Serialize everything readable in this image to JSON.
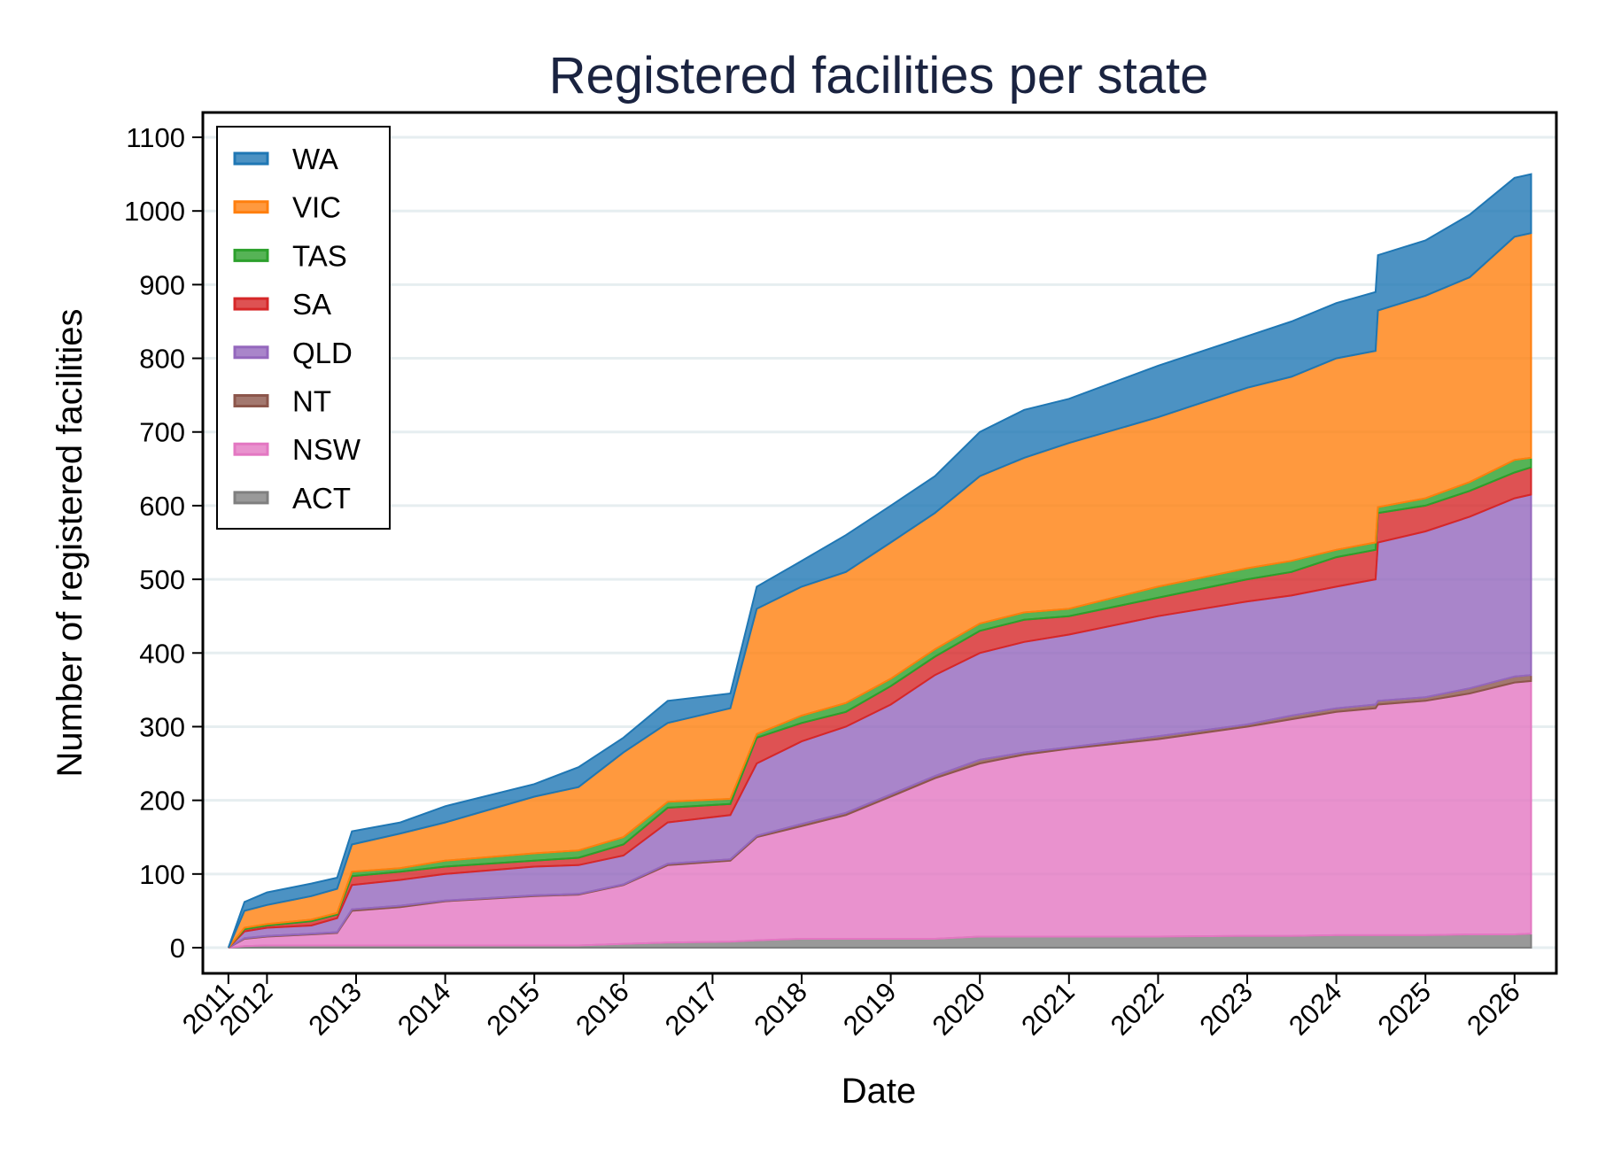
{
  "chart_data": {
    "type": "area",
    "stacked": true,
    "title": "Registered facilities per state",
    "xlabel": "Date",
    "ylabel": "Number of registered facilities",
    "ylim": [
      -35,
      1135
    ],
    "yticks": [
      0,
      100,
      200,
      300,
      400,
      500,
      600,
      700,
      800,
      900,
      1000,
      1100
    ],
    "xticks": [
      {
        "label": "2011",
        "date": "2011-07-27"
      },
      {
        "label": "2012",
        "date": "2012-01-01"
      },
      {
        "label": "2013",
        "date": "2013-01-01"
      },
      {
        "label": "2014",
        "date": "2014-01-01"
      },
      {
        "label": "2015",
        "date": "2015-01-01"
      },
      {
        "label": "2016",
        "date": "2016-01-01"
      },
      {
        "label": "2017",
        "date": "2017-01-01"
      },
      {
        "label": "2018",
        "date": "2018-01-01"
      },
      {
        "label": "2019",
        "date": "2019-01-01"
      },
      {
        "label": "2020",
        "date": "2020-01-01"
      },
      {
        "label": "2021",
        "date": "2021-01-01"
      },
      {
        "label": "2022",
        "date": "2022-01-01"
      },
      {
        "label": "2023",
        "date": "2023-01-01"
      },
      {
        "label": "2024",
        "date": "2024-01-01"
      },
      {
        "label": "2025",
        "date": "2025-01-01"
      },
      {
        "label": "2026",
        "date": "2026-01-01"
      }
    ],
    "grid": true,
    "legend_position": "top-left",
    "x": [
      "2011-07-27",
      "2011-10-01",
      "2012-01-01",
      "2012-07-01",
      "2012-10-15",
      "2012-12-15",
      "2013-07-01",
      "2014-01-01",
      "2015-01-01",
      "2015-07-01",
      "2016-01-01",
      "2016-07-01",
      "2017-03-15",
      "2017-07-01",
      "2018-01-01",
      "2018-07-01",
      "2019-01-01",
      "2019-07-01",
      "2020-01-01",
      "2020-07-01",
      "2021-01-01",
      "2022-01-01",
      "2023-01-01",
      "2023-07-01",
      "2024-01-01",
      "2024-06-10",
      "2024-06-20",
      "2025-01-01",
      "2025-07-01",
      "2026-01-01",
      "2026-03-10"
    ],
    "series": [
      {
        "name": "ACT",
        "color": "#7f7f7f",
        "values": [
          0,
          2,
          3,
          3,
          3,
          3,
          3,
          3,
          3,
          3,
          5,
          7,
          8,
          10,
          12,
          12,
          12,
          12,
          15,
          15,
          15,
          15,
          16,
          16,
          17,
          17,
          17,
          17,
          18,
          18,
          19
        ]
      },
      {
        "name": "NSW",
        "color": "#e377c2",
        "values": [
          0,
          10,
          12,
          15,
          17,
          47,
          52,
          60,
          67,
          69,
          80,
          105,
          110,
          140,
          153,
          168,
          193,
          218,
          235,
          247,
          255,
          268,
          284,
          294,
          303,
          308,
          313,
          318,
          327,
          342,
          343
        ]
      },
      {
        "name": "NT",
        "color": "#8c564b",
        "values": [
          0,
          1,
          1,
          1,
          1,
          2,
          2,
          1,
          1,
          1,
          1,
          2,
          2,
          2,
          3,
          3,
          3,
          3,
          5,
          3,
          2,
          4,
          3,
          5,
          5,
          5,
          5,
          5,
          7,
          8,
          8
        ]
      },
      {
        "name": "QLD",
        "color": "#9467bd",
        "values": [
          0,
          9,
          11,
          11,
          19,
          33,
          35,
          36,
          39,
          39,
          39,
          56,
          60,
          98,
          112,
          117,
          122,
          137,
          145,
          150,
          153,
          163,
          167,
          163,
          165,
          170,
          215,
          225,
          233,
          242,
          245
        ]
      },
      {
        "name": "SA",
        "color": "#d62728",
        "values": [
          0,
          3,
          3,
          6,
          5,
          12,
          11,
          10,
          8,
          10,
          15,
          20,
          15,
          35,
          25,
          20,
          25,
          25,
          30,
          30,
          25,
          25,
          30,
          32,
          40,
          40,
          40,
          35,
          35,
          35,
          37
        ]
      },
      {
        "name": "TAS",
        "color": "#2ca02c",
        "values": [
          0,
          2,
          2,
          2,
          2,
          6,
          5,
          8,
          10,
          10,
          10,
          8,
          7,
          5,
          10,
          12,
          10,
          10,
          10,
          10,
          10,
          15,
          15,
          15,
          10,
          10,
          8,
          10,
          12,
          17,
          13
        ]
      },
      {
        "name": "VIC",
        "color": "#ff7f0e",
        "values": [
          0,
          23,
          26,
          32,
          33,
          37,
          47,
          52,
          77,
          86,
          115,
          107,
          123,
          170,
          175,
          178,
          185,
          185,
          200,
          210,
          225,
          230,
          245,
          250,
          260,
          260,
          267,
          275,
          278,
          303,
          305
        ]
      },
      {
        "name": "WA",
        "color": "#1f77b4",
        "values": [
          0,
          12,
          17,
          17,
          15,
          18,
          15,
          22,
          17,
          27,
          20,
          30,
          20,
          30,
          35,
          50,
          50,
          50,
          60,
          65,
          60,
          70,
          70,
          75,
          75,
          80,
          75,
          75,
          85,
          80,
          80
        ]
      }
    ],
    "legend_order": [
      "WA",
      "VIC",
      "TAS",
      "SA",
      "QLD",
      "NT",
      "NSW",
      "ACT"
    ]
  }
}
